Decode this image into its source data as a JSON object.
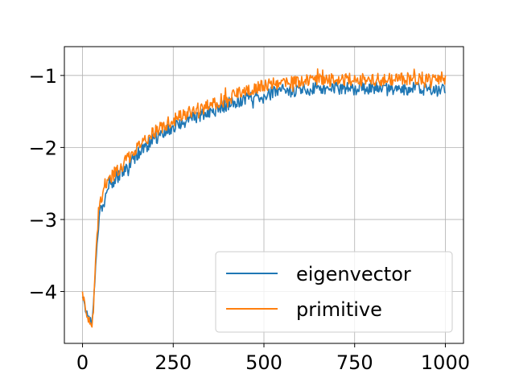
{
  "chart_data": {
    "type": "line",
    "title": "",
    "xlabel": "",
    "ylabel": "",
    "xlim": [
      -50,
      1050
    ],
    "ylim": [
      -4.72,
      -0.6
    ],
    "grid": true,
    "legend_position": "lower-right",
    "x_ticks": [
      0,
      250,
      500,
      750,
      1000
    ],
    "x_tick_labels": [
      "0",
      "250",
      "500",
      "750",
      "1000"
    ],
    "y_ticks": [
      -4,
      -3,
      -2,
      -1
    ],
    "y_tick_labels": [
      "−4",
      "−3",
      "−2",
      "−1"
    ],
    "series": [
      {
        "name": "eigenvector",
        "color": "#1f77b4",
        "x": [
          0,
          10,
          20,
          25,
          30,
          35,
          40,
          45,
          50,
          55,
          60,
          65,
          70,
          75,
          80,
          90,
          100,
          125,
          150,
          175,
          200,
          250,
          300,
          350,
          400,
          450,
          500,
          550,
          600,
          650,
          700,
          750,
          800,
          850,
          900,
          950,
          1000
        ],
        "y": [
          -4.05,
          -4.3,
          -4.38,
          -4.45,
          -4.2,
          -3.75,
          -3.3,
          -3.0,
          -2.85,
          -2.8,
          -2.75,
          -2.65,
          -2.6,
          -2.55,
          -2.5,
          -2.45,
          -2.4,
          -2.25,
          -2.1,
          -1.98,
          -1.88,
          -1.72,
          -1.6,
          -1.52,
          -1.4,
          -1.32,
          -1.27,
          -1.22,
          -1.2,
          -1.18,
          -1.17,
          -1.18,
          -1.17,
          -1.2,
          -1.18,
          -1.2,
          -1.2
        ],
        "noise": 0.09
      },
      {
        "name": "primitive",
        "color": "#ff7f0e",
        "x": [
          0,
          10,
          20,
          25,
          30,
          35,
          40,
          45,
          50,
          55,
          60,
          65,
          70,
          75,
          80,
          90,
          100,
          125,
          150,
          175,
          200,
          250,
          300,
          350,
          400,
          450,
          500,
          550,
          600,
          650,
          700,
          750,
          800,
          850,
          900,
          950,
          1000
        ],
        "y": [
          -3.98,
          -4.3,
          -4.45,
          -4.5,
          -4.25,
          -3.7,
          -3.2,
          -2.85,
          -2.72,
          -2.66,
          -2.6,
          -2.55,
          -2.5,
          -2.45,
          -2.4,
          -2.35,
          -2.3,
          -2.15,
          -2.0,
          -1.88,
          -1.78,
          -1.62,
          -1.5,
          -1.42,
          -1.3,
          -1.22,
          -1.14,
          -1.1,
          -1.08,
          -1.07,
          -1.06,
          -1.06,
          -1.06,
          -1.05,
          -1.04,
          -1.04,
          -1.03
        ],
        "noise": 0.09
      }
    ]
  }
}
